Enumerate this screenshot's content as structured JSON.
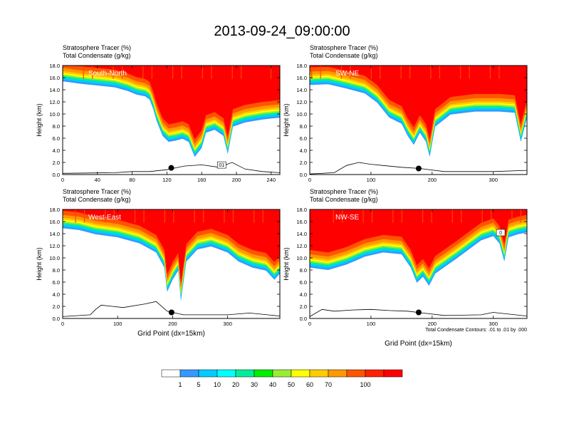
{
  "title": "2013-09-24_09:00:00",
  "colors": {
    "levels": [
      "#ffffff",
      "#3399ff",
      "#00ccff",
      "#00ffff",
      "#00ee99",
      "#00ee00",
      "#99ee33",
      "#ffff00",
      "#ffcc00",
      "#ff9900",
      "#ff5500",
      "#ff2200",
      "#ff0000"
    ],
    "terrain": "#000000"
  },
  "chart_data": {
    "type": "heatmap",
    "colorbar": {
      "ticks": [
        "1",
        "5",
        "10",
        "20",
        "30",
        "40",
        "50",
        "60",
        "70",
        "100"
      ]
    },
    "panels": [
      {
        "id": "south-north",
        "label": "South-North",
        "subtitle1": "Stratosphere Tracer   (%)",
        "subtitle2": "Total Condensate   (g/kg)",
        "ylabel": "Height (km)",
        "xlabel": "",
        "xlim": [
          0,
          250
        ],
        "ylim": [
          0,
          18
        ],
        "xticks": [
          0,
          40,
          80,
          120,
          160,
          200,
          240
        ],
        "xtick_labels": [
          "0",
          "40",
          "80",
          "120",
          "160",
          "200",
          "240"
        ],
        "yticks": [
          0,
          2,
          4,
          6,
          8,
          10,
          12,
          14,
          16,
          18
        ],
        "ytick_labels": [
          "0.0",
          "2.0",
          "4.0",
          "6.0",
          "8.0",
          "10.0",
          "12.0",
          "14.0",
          "16.0",
          "18.0"
        ],
        "tracer_base_km": [
          [
            0,
            16.0
          ],
          [
            20,
            15.6
          ],
          [
            40,
            15.3
          ],
          [
            60,
            15.0
          ],
          [
            75,
            14.4
          ],
          [
            85,
            13.8
          ],
          [
            95,
            13.5
          ],
          [
            100,
            13.0
          ],
          [
            104,
            11.5
          ],
          [
            108,
            9.5
          ],
          [
            115,
            7.0
          ],
          [
            122,
            6.0
          ],
          [
            130,
            6.2
          ],
          [
            138,
            6.5
          ],
          [
            145,
            6.0
          ],
          [
            152,
            3.5
          ],
          [
            160,
            5.0
          ],
          [
            165,
            7.5
          ],
          [
            175,
            8.0
          ],
          [
            185,
            7.0
          ],
          [
            190,
            4.0
          ],
          [
            196,
            8.5
          ],
          [
            210,
            9.2
          ],
          [
            230,
            9.7
          ],
          [
            250,
            10.0
          ]
        ],
        "terrain_km": [
          [
            0,
            0.2
          ],
          [
            60,
            0.3
          ],
          [
            80,
            0.5
          ],
          [
            100,
            0.5
          ],
          [
            120,
            0.8
          ],
          [
            140,
            1.4
          ],
          [
            160,
            1.6
          ],
          [
            180,
            1.2
          ],
          [
            195,
            2.0
          ],
          [
            210,
            0.9
          ],
          [
            230,
            0.5
          ],
          [
            250,
            0.3
          ]
        ],
        "marker": {
          "x": 125,
          "y": 1.1
        },
        "contour_label": "01"
      },
      {
        "id": "sw-ne",
        "label": "SW-NE",
        "subtitle1": "Stratosphere Tracer   (%)",
        "subtitle2": "Total Condensate   (g/kg)",
        "ylabel": "Height (km)",
        "xlabel": "",
        "xlim": [
          0,
          355
        ],
        "ylim": [
          0,
          18
        ],
        "xticks": [
          0,
          100,
          200,
          300
        ],
        "xtick_labels": [
          "0",
          "100",
          "200",
          "300"
        ],
        "yticks": [
          0,
          2,
          4,
          6,
          8,
          10,
          12,
          14,
          16,
          18
        ],
        "ytick_labels": [
          "0.0",
          "2.0",
          "4.0",
          "6.0",
          "8.0",
          "10.0",
          "12.0",
          "14.0",
          "16.0",
          "18.0"
        ],
        "tracer_base_km": [
          [
            0,
            15.4
          ],
          [
            30,
            15.5
          ],
          [
            60,
            14.8
          ],
          [
            90,
            14.0
          ],
          [
            110,
            12.5
          ],
          [
            130,
            10.0
          ],
          [
            150,
            9.0
          ],
          [
            160,
            7.0
          ],
          [
            170,
            5.5
          ],
          [
            180,
            7.5
          ],
          [
            190,
            6.0
          ],
          [
            196,
            3.5
          ],
          [
            205,
            8.5
          ],
          [
            230,
            10.5
          ],
          [
            270,
            11.0
          ],
          [
            310,
            11.0
          ],
          [
            335,
            10.8
          ],
          [
            345,
            6.0
          ],
          [
            355,
            10.0
          ]
        ],
        "terrain_km": [
          [
            0,
            0.1
          ],
          [
            40,
            0.3
          ],
          [
            60,
            1.5
          ],
          [
            80,
            2.0
          ],
          [
            100,
            1.7
          ],
          [
            120,
            1.5
          ],
          [
            150,
            1.2
          ],
          [
            180,
            1.0
          ],
          [
            220,
            0.5
          ],
          [
            300,
            0.5
          ],
          [
            355,
            0.7
          ]
        ],
        "marker": {
          "x": 178,
          "y": 1.0
        }
      },
      {
        "id": "west-east",
        "label": "West-East",
        "subtitle1": "Stratosphere Tracer   (%)",
        "subtitle2": "Total Condensate   (g/kg)",
        "ylabel": "Height (km)",
        "xlabel": "Grid Point (dx=15km)",
        "xlim": [
          0,
          395
        ],
        "ylim": [
          0,
          18
        ],
        "xticks": [
          0,
          100,
          200,
          300
        ],
        "xtick_labels": [
          "0",
          "100",
          "200",
          "300"
        ],
        "yticks": [
          0,
          2,
          4,
          6,
          8,
          10,
          12,
          14,
          16,
          18
        ],
        "ytick_labels": [
          "0.0",
          "2.0",
          "4.0",
          "6.0",
          "8.0",
          "10.0",
          "12.0",
          "14.0",
          "16.0",
          "18.0"
        ],
        "tracer_base_km": [
          [
            0,
            15.5
          ],
          [
            30,
            15.2
          ],
          [
            60,
            14.5
          ],
          [
            100,
            14.0
          ],
          [
            140,
            13.0
          ],
          [
            170,
            11.5
          ],
          [
            185,
            9.0
          ],
          [
            190,
            5.0
          ],
          [
            200,
            7.0
          ],
          [
            210,
            8.5
          ],
          [
            215,
            3.5
          ],
          [
            225,
            10.0
          ],
          [
            245,
            12.0
          ],
          [
            270,
            12.5
          ],
          [
            300,
            11.5
          ],
          [
            320,
            10.0
          ],
          [
            345,
            9.0
          ],
          [
            370,
            8.5
          ],
          [
            385,
            7.0
          ],
          [
            395,
            8.0
          ]
        ],
        "terrain_km": [
          [
            0,
            0.3
          ],
          [
            50,
            0.6
          ],
          [
            60,
            1.5
          ],
          [
            70,
            2.2
          ],
          [
            90,
            2.0
          ],
          [
            110,
            1.8
          ],
          [
            150,
            2.4
          ],
          [
            170,
            2.8
          ],
          [
            190,
            1.2
          ],
          [
            220,
            0.6
          ],
          [
            300,
            0.6
          ],
          [
            340,
            0.9
          ],
          [
            395,
            0.4
          ]
        ],
        "marker": {
          "x": 198,
          "y": 1.0
        }
      },
      {
        "id": "nw-se",
        "label": "NW-SE",
        "subtitle1": "Stratosphere Tracer   (%)",
        "subtitle2": "Total Condensate   (g/kg)",
        "ylabel": "Height (km)",
        "xlabel": "Grid Point (dx=15km)",
        "xlim": [
          0,
          355
        ],
        "ylim": [
          0,
          18
        ],
        "xticks": [
          0,
          100,
          200,
          300
        ],
        "xtick_labels": [
          "0",
          "100",
          "200",
          "300"
        ],
        "yticks": [
          0,
          2,
          4,
          6,
          8,
          10,
          12,
          14,
          16,
          18
        ],
        "ytick_labels": [
          "0.0",
          "2.0",
          "4.0",
          "6.0",
          "8.0",
          "10.0",
          "12.0",
          "14.0",
          "16.0",
          "18.0"
        ],
        "tracer_base_km": [
          [
            0,
            9.0
          ],
          [
            30,
            8.6
          ],
          [
            60,
            9.5
          ],
          [
            90,
            10.8
          ],
          [
            120,
            11.5
          ],
          [
            150,
            11.2
          ],
          [
            165,
            9.0
          ],
          [
            175,
            6.5
          ],
          [
            185,
            7.5
          ],
          [
            195,
            6.0
          ],
          [
            205,
            8.0
          ],
          [
            240,
            10.5
          ],
          [
            260,
            12.0
          ],
          [
            280,
            13.5
          ],
          [
            300,
            14.2
          ],
          [
            310,
            13.0
          ],
          [
            318,
            10.0
          ],
          [
            325,
            14.0
          ],
          [
            340,
            14.5
          ],
          [
            355,
            14.8
          ]
        ],
        "terrain_km": [
          [
            0,
            0.3
          ],
          [
            20,
            1.5
          ],
          [
            40,
            1.2
          ],
          [
            70,
            1.4
          ],
          [
            100,
            1.5
          ],
          [
            130,
            1.3
          ],
          [
            160,
            1.2
          ],
          [
            185,
            0.9
          ],
          [
            220,
            0.5
          ],
          [
            280,
            0.6
          ],
          [
            300,
            1.0
          ],
          [
            355,
            0.4
          ]
        ],
        "marker": {
          "x": 178,
          "y": 1.0
        },
        "contour_label": "0",
        "note": "Total Condensate Contours: .01 to .01 by .000"
      }
    ]
  }
}
